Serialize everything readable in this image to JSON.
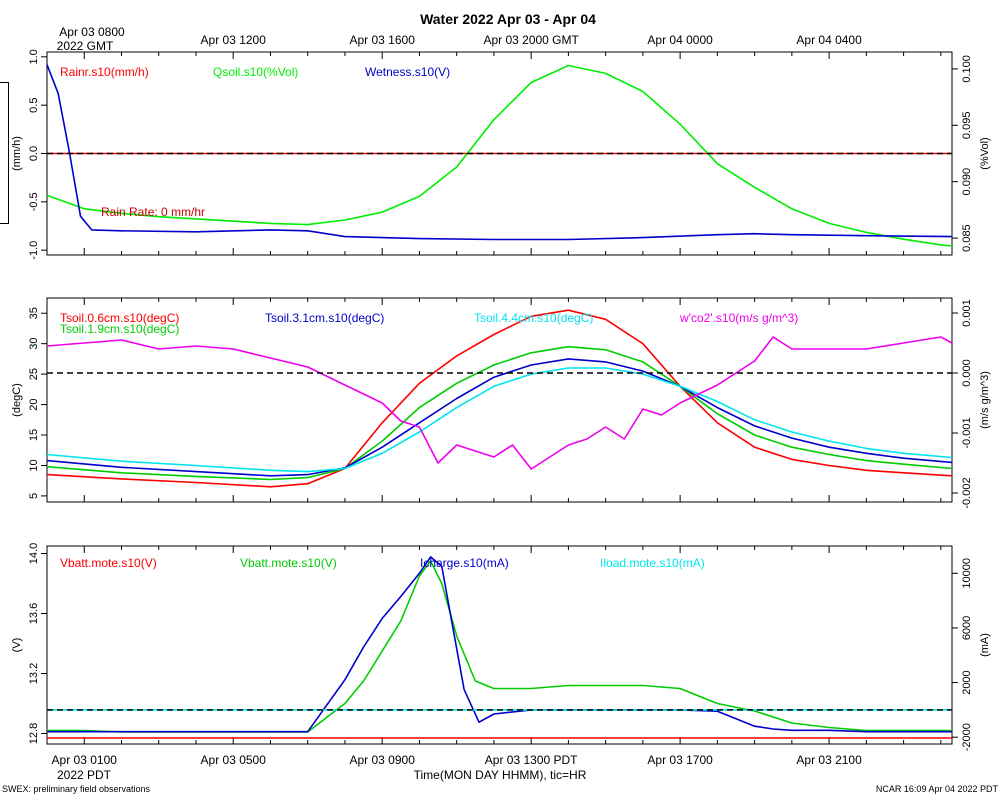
{
  "title": "Water 2022 Apr 03 - Apr 04",
  "top_axis": {
    "first_label": [
      "Apr 03 0800",
      "2022 GMT"
    ],
    "labels": [
      "Apr 03 1200",
      "Apr 03 1600",
      "Apr 03 2000 GMT",
      "Apr 04 0000",
      "Apr 04 0400"
    ]
  },
  "bottom_axis": {
    "labels": [
      "Apr 03 0100",
      "Apr 03 0500",
      "Apr 03 0900",
      "Apr 03 1300 PDT",
      "Apr 03 1700",
      "Apr 03 2100"
    ],
    "year_label": "2022 PDT",
    "xlabel": "Time(MON DAY HHMM), tic=HR"
  },
  "footer_left": "SWEX: preliminary field observations",
  "footer_right": "NCAR 16:09 Apr 04 2022 PDT",
  "chart_data": [
    {
      "type": "line",
      "panel": "top",
      "x_unit": "hours since Apr 03 0000 PDT",
      "xlim": [
        0,
        24.3
      ],
      "y_left": {
        "label": "(mm/h)",
        "lim": [
          -1.05,
          1.05
        ],
        "ticks": [
          -1.0,
          -0.5,
          0.0,
          0.5,
          1.0
        ]
      },
      "y_right": {
        "label": "(%Vol)",
        "lim": [
          0.0835,
          0.1015
        ],
        "ticks": [
          0.085,
          0.09,
          0.095,
          0.1
        ]
      },
      "annotation": "Rain Rate: 0 mm/hr",
      "series": [
        {
          "name": "Rainr.s10(mm/h)",
          "color": "#ff0000",
          "axis": "left",
          "x": [
            0,
            24.3
          ],
          "y": [
            0,
            0
          ]
        },
        {
          "name": "Qsoil.s10(%Vol)",
          "color": "#00ee00",
          "axis": "right",
          "x": [
            0,
            1,
            2,
            3,
            4,
            5,
            6,
            7,
            8,
            9,
            10,
            11,
            12,
            13,
            14,
            15,
            16,
            17,
            18,
            19,
            20,
            21,
            22,
            23,
            24,
            24.3
          ],
          "y": [
            0.0888,
            0.0876,
            0.0872,
            0.0869,
            0.0867,
            0.0865,
            0.0863,
            0.0862,
            0.0866,
            0.0873,
            0.0887,
            0.0913,
            0.0955,
            0.0988,
            0.1003,
            0.0996,
            0.098,
            0.0951,
            0.0916,
            0.0895,
            0.0876,
            0.0863,
            0.0855,
            0.0849,
            0.0844,
            0.0843
          ]
        },
        {
          "name": "Wetness.s10(V)",
          "color": "#0000cc",
          "axis": "left",
          "x": [
            0,
            0.3,
            0.6,
            0.9,
            1.2,
            2,
            4,
            6,
            7,
            8,
            10,
            12,
            14,
            16,
            18,
            19,
            20,
            22,
            24.3
          ],
          "y": [
            0.92,
            0.62,
            0.02,
            -0.65,
            -0.79,
            -0.8,
            -0.81,
            -0.79,
            -0.8,
            -0.86,
            -0.88,
            -0.89,
            -0.89,
            -0.87,
            -0.84,
            -0.83,
            -0.84,
            -0.85,
            -0.86
          ]
        }
      ]
    },
    {
      "type": "line",
      "panel": "middle",
      "x_unit": "hours since Apr 03 0000 PDT",
      "xlim": [
        0,
        24.3
      ],
      "y_left": {
        "label": "(degC)",
        "lim": [
          4,
          37.5
        ],
        "ticks": [
          5,
          10,
          15,
          20,
          25,
          30,
          35
        ]
      },
      "y_right": {
        "label": "(m/s g/m^3)",
        "lim": [
          -0.00215,
          0.00125
        ],
        "ticks": [
          -0.002,
          -0.001,
          0.0,
          0.001
        ]
      },
      "zero_line_right": 0.0,
      "series": [
        {
          "name": "Tsoil.0.6cm.s10(degC)",
          "color": "#ff0000",
          "axis": "left",
          "x": [
            0,
            2,
            4,
            6,
            7,
            8,
            9,
            10,
            11,
            12,
            13,
            14,
            15,
            16,
            17,
            18,
            19,
            20,
            21,
            22,
            23,
            24.3
          ],
          "y": [
            8.5,
            7.8,
            7.2,
            6.5,
            7.0,
            9.5,
            17.0,
            23.5,
            28.0,
            31.5,
            34.5,
            35.5,
            34.0,
            30.0,
            23.0,
            17.0,
            13.0,
            11.0,
            10.0,
            9.2,
            8.8,
            8.3
          ]
        },
        {
          "name": "Tsoil.1.9cm.s10(degC)",
          "color": "#00cc00",
          "axis": "left",
          "x": [
            0,
            2,
            4,
            6,
            7,
            8,
            9,
            10,
            11,
            12,
            13,
            14,
            15,
            16,
            17,
            18,
            19,
            20,
            21,
            22,
            23,
            24.3
          ],
          "y": [
            9.8,
            8.8,
            8.2,
            7.7,
            8.0,
            9.5,
            14.0,
            19.5,
            23.5,
            26.5,
            28.5,
            29.5,
            29.0,
            27.0,
            23.0,
            18.5,
            15.0,
            13.0,
            11.8,
            10.8,
            10.2,
            9.5
          ]
        },
        {
          "name": "Tsoil.3.1cm.s10(degC)",
          "color": "#0000cc",
          "axis": "left",
          "x": [
            0,
            2,
            4,
            6,
            7,
            8,
            9,
            10,
            11,
            12,
            13,
            14,
            15,
            16,
            17,
            18,
            19,
            20,
            21,
            22,
            23,
            24.3
          ],
          "y": [
            10.8,
            9.7,
            9.0,
            8.3,
            8.5,
            9.6,
            13.0,
            17.0,
            21.0,
            24.5,
            26.5,
            27.5,
            27.0,
            25.5,
            23.0,
            19.5,
            16.5,
            14.5,
            13.0,
            12.0,
            11.2,
            10.5
          ]
        },
        {
          "name": "Tsoil.4.4cm.s10(degC)",
          "color": "#00e5ee",
          "axis": "left",
          "x": [
            0,
            2,
            4,
            6,
            7,
            8,
            9,
            10,
            11,
            12,
            13,
            14,
            15,
            16,
            17,
            18,
            19,
            20,
            21,
            22,
            23,
            24.3
          ],
          "y": [
            11.8,
            10.7,
            10.0,
            9.2,
            9.0,
            9.5,
            12.0,
            15.5,
            19.5,
            23.0,
            25.0,
            26.0,
            26.0,
            25.0,
            23.0,
            20.5,
            17.5,
            15.5,
            14.0,
            12.8,
            12.0,
            11.3
          ]
        },
        {
          "name": "w'co2'.s10(m/s g/m^3)",
          "color": "#ee00ee",
          "axis": "right",
          "x": [
            0,
            1,
            2,
            3,
            4,
            5,
            6,
            7,
            8,
            9,
            9.5,
            10,
            10.5,
            11,
            11.5,
            12,
            12.5,
            13,
            13.5,
            14,
            14.5,
            15,
            15.5,
            16,
            16.5,
            17,
            18,
            19,
            19.5,
            20,
            21,
            22,
            23,
            24,
            24.3
          ],
          "y": [
            0.00045,
            0.0005,
            0.00055,
            0.0004,
            0.00045,
            0.0004,
            0.00025,
            0.0001,
            -0.0002,
            -0.0005,
            -0.0008,
            -0.0009,
            -0.0015,
            -0.0012,
            -0.0013,
            -0.0014,
            -0.0012,
            -0.0016,
            -0.0014,
            -0.0012,
            -0.0011,
            -0.0009,
            -0.0011,
            -0.0006,
            -0.0007,
            -0.0005,
            -0.0002,
            0.0002,
            0.0006,
            0.0004,
            0.0004,
            0.0004,
            0.0005,
            0.0006,
            0.0005
          ]
        }
      ]
    },
    {
      "type": "line",
      "panel": "bottom",
      "x_unit": "hours since Apr 03 0000 PDT",
      "xlim": [
        0,
        24.3
      ],
      "y_left": {
        "label": "(V)",
        "lim": [
          12.73,
          14.05
        ],
        "ticks": [
          12.8,
          13.2,
          13.6,
          14.0
        ]
      },
      "y_right": {
        "label": "(mA)",
        "lim": [
          -2500,
          12000
        ],
        "ticks": [
          -2000,
          2000,
          6000,
          10000
        ]
      },
      "zero_line_right": 0,
      "series": [
        {
          "name": "Vbatt.mote.s10(V)",
          "color": "#ff0000",
          "axis": "left",
          "x": [
            0,
            24.3
          ],
          "y": [
            12.77,
            12.77
          ]
        },
        {
          "name": "Vbatt.mote.s10(V)",
          "color": "#00cc00",
          "axis": "left",
          "x": [
            0,
            1,
            2,
            3,
            4,
            5,
            6,
            7,
            8,
            8.5,
            9,
            9.5,
            10,
            10.3,
            10.6,
            11,
            11.5,
            12,
            13,
            14,
            15,
            16,
            17,
            18,
            19,
            20,
            21,
            22,
            23,
            24.3
          ],
          "y": [
            12.82,
            12.82,
            12.81,
            12.81,
            12.81,
            12.81,
            12.81,
            12.81,
            13.0,
            13.15,
            13.35,
            13.55,
            13.85,
            13.95,
            13.8,
            13.45,
            13.15,
            13.1,
            13.1,
            13.12,
            13.12,
            13.12,
            13.1,
            13.0,
            12.95,
            12.87,
            12.84,
            12.82,
            12.82,
            12.82
          ]
        },
        {
          "name": "Icharge.s10(mA)",
          "color": "#0000cc",
          "axis": "right",
          "x": [
            0,
            1,
            2,
            3,
            4,
            5,
            6,
            7,
            8,
            8.5,
            9,
            9.5,
            10,
            10.3,
            10.6,
            10.9,
            11.2,
            11.6,
            12,
            13,
            14,
            15,
            16,
            17,
            18,
            19,
            19.5,
            20,
            21,
            22,
            23,
            24.3
          ],
          "y": [
            -1600,
            -1600,
            -1600,
            -1600,
            -1600,
            -1600,
            -1600,
            -1600,
            2200,
            4600,
            6700,
            8300,
            10000,
            11200,
            10500,
            6000,
            1500,
            -900,
            -300,
            0,
            0,
            0,
            0,
            0,
            -100,
            -1200,
            -1400,
            -1500,
            -1500,
            -1600,
            -1600,
            -1600
          ]
        },
        {
          "name": "Iload.mote.s10(mA)",
          "color": "#00e5ee",
          "axis": "right",
          "x": [
            0,
            24.3
          ],
          "y": [
            0,
            0
          ]
        }
      ]
    }
  ]
}
